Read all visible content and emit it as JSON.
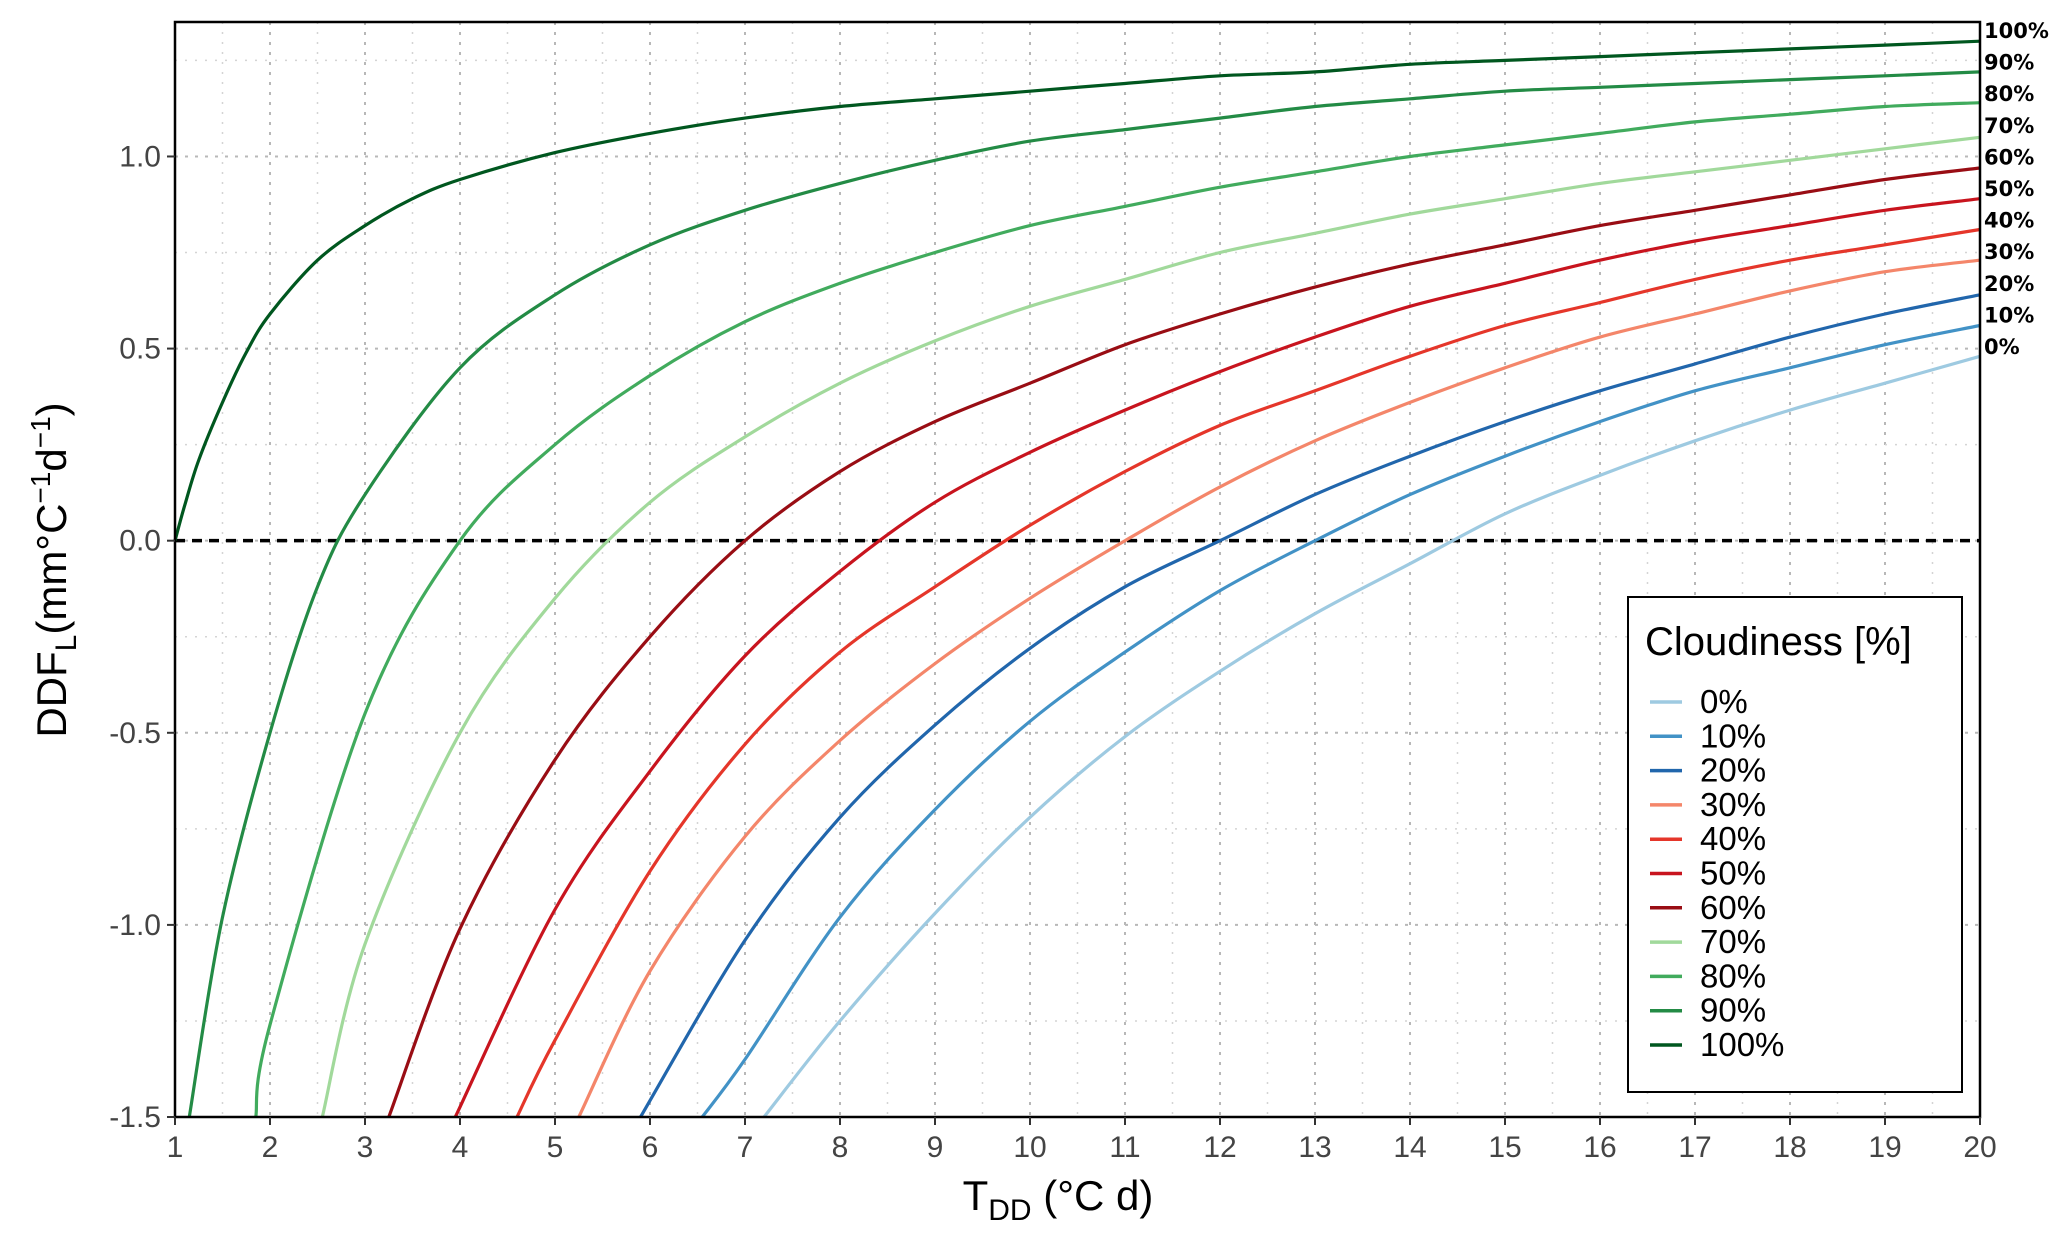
{
  "chart_data": {
    "type": "line",
    "title": "",
    "xlabel": "T",
    "xlabel_sub": "DD",
    "xlabel_rest": " (°C d)",
    "ylabel": "DDF",
    "ylabel_sub": "L",
    "ylabel_rest": "(mm°C",
    "ylabel_sup1": "−1",
    "ylabel_mid": "d",
    "ylabel_sup2": "−1",
    "ylabel_end": ")",
    "xlim": [
      1,
      20
    ],
    "ylim": [
      -1.5,
      1.35
    ],
    "x_ticks": [
      "1",
      "2",
      "3",
      "4",
      "5",
      "6",
      "7",
      "8",
      "9",
      "10",
      "11",
      "12",
      "13",
      "14",
      "15",
      "16",
      "17",
      "18",
      "19",
      "20"
    ],
    "y_ticks": [
      "-1.5",
      "-1.0",
      "-0.5",
      "0.0",
      "0.5",
      "1.0"
    ],
    "y_tick_values": [
      -1.5,
      -1.0,
      -0.5,
      0.0,
      0.5,
      1.0
    ],
    "grid": true,
    "reference_line": {
      "y": 0.0,
      "style": "dashed"
    },
    "legend": {
      "title": "Cloudiness [%]",
      "placement": "bottom-right"
    },
    "series": [
      {
        "name": "0%",
        "color": "#9ecae1",
        "x": [
          7.2,
          8,
          9,
          10,
          11,
          12,
          13,
          14,
          15,
          16,
          17,
          18,
          19,
          20
        ],
        "y": [
          -1.5,
          -1.25,
          -0.97,
          -0.72,
          -0.51,
          -0.34,
          -0.19,
          -0.06,
          0.07,
          0.17,
          0.26,
          0.34,
          0.41,
          0.48
        ]
      },
      {
        "name": "10%",
        "color": "#4292c6",
        "x": [
          6.55,
          7,
          8,
          9,
          10,
          11,
          12,
          13,
          14,
          15,
          16,
          17,
          18,
          19,
          20
        ],
        "y": [
          -1.5,
          -1.35,
          -0.98,
          -0.7,
          -0.47,
          -0.29,
          -0.13,
          0.0,
          0.12,
          0.22,
          0.31,
          0.39,
          0.45,
          0.51,
          0.56
        ]
      },
      {
        "name": "20%",
        "color": "#2166ac",
        "x": [
          5.9,
          7,
          8,
          9,
          10,
          11,
          12,
          13,
          14,
          15,
          16,
          17,
          18,
          19,
          20
        ],
        "y": [
          -1.5,
          -1.04,
          -0.72,
          -0.48,
          -0.28,
          -0.12,
          0.0,
          0.12,
          0.22,
          0.31,
          0.39,
          0.46,
          0.53,
          0.59,
          0.64
        ]
      },
      {
        "name": "30%",
        "color": "#f4866a",
        "x": [
          5.25,
          6,
          7,
          8,
          9,
          10,
          11,
          12,
          13,
          14,
          15,
          16,
          17,
          18,
          19,
          20
        ],
        "y": [
          -1.5,
          -1.12,
          -0.77,
          -0.52,
          -0.32,
          -0.15,
          0.0,
          0.14,
          0.26,
          0.36,
          0.45,
          0.53,
          0.59,
          0.65,
          0.7,
          0.73
        ]
      },
      {
        "name": "40%",
        "color": "#e5362a",
        "x": [
          4.6,
          5,
          6,
          7,
          8,
          9,
          10,
          11,
          12,
          13,
          14,
          15,
          16,
          17,
          18,
          19,
          20
        ],
        "y": [
          -1.5,
          -1.3,
          -0.86,
          -0.53,
          -0.29,
          -0.12,
          0.04,
          0.18,
          0.3,
          0.39,
          0.48,
          0.56,
          0.62,
          0.68,
          0.73,
          0.77,
          0.81
        ]
      },
      {
        "name": "50%",
        "color": "#c8141e",
        "x": [
          3.95,
          5,
          6,
          7,
          8,
          9,
          10,
          11,
          12,
          13,
          14,
          15,
          16,
          17,
          18,
          19,
          20
        ],
        "y": [
          -1.5,
          -0.96,
          -0.6,
          -0.3,
          -0.08,
          0.1,
          0.23,
          0.34,
          0.44,
          0.53,
          0.61,
          0.67,
          0.73,
          0.78,
          0.82,
          0.86,
          0.89
        ]
      },
      {
        "name": "60%",
        "color": "#990d14",
        "x": [
          3.25,
          4,
          5,
          6,
          7,
          8,
          9,
          10,
          11,
          12,
          13,
          14,
          15,
          16,
          17,
          18,
          19,
          20
        ],
        "y": [
          -1.5,
          -1.01,
          -0.57,
          -0.25,
          0.0,
          0.18,
          0.31,
          0.41,
          0.51,
          0.59,
          0.66,
          0.72,
          0.77,
          0.82,
          0.86,
          0.9,
          0.94,
          0.97
        ]
      },
      {
        "name": "70%",
        "color": "#a1d99b",
        "x": [
          2.55,
          3,
          4,
          5,
          6,
          7,
          8,
          9,
          10,
          11,
          12,
          13,
          14,
          15,
          16,
          17,
          18,
          19,
          20
        ],
        "y": [
          -1.5,
          -1.05,
          -0.5,
          -0.15,
          0.1,
          0.27,
          0.41,
          0.52,
          0.61,
          0.68,
          0.75,
          0.8,
          0.85,
          0.89,
          0.93,
          0.96,
          0.99,
          1.02,
          1.05
        ]
      },
      {
        "name": "80%",
        "color": "#41ab5d",
        "x": [
          1.85,
          2,
          3,
          4,
          5,
          6,
          7,
          8,
          9,
          10,
          11,
          12,
          13,
          14,
          15,
          16,
          17,
          18,
          19,
          20
        ],
        "y": [
          -1.5,
          -1.26,
          -0.45,
          0.0,
          0.25,
          0.43,
          0.57,
          0.67,
          0.75,
          0.82,
          0.87,
          0.92,
          0.96,
          1.0,
          1.03,
          1.06,
          1.09,
          1.11,
          1.13,
          1.14
        ]
      },
      {
        "name": "90%",
        "color": "#238b45",
        "x": [
          1.15,
          1.5,
          2,
          2.5,
          3,
          4,
          5,
          6,
          7,
          8,
          9,
          10,
          11,
          12,
          13,
          14,
          15,
          16,
          17,
          18,
          19,
          20
        ],
        "y": [
          -1.5,
          -0.98,
          -0.5,
          -0.12,
          0.12,
          0.45,
          0.64,
          0.77,
          0.86,
          0.93,
          0.99,
          1.04,
          1.07,
          1.1,
          1.13,
          1.15,
          1.17,
          1.18,
          1.19,
          1.2,
          1.21,
          1.22
        ]
      },
      {
        "name": "100%",
        "color": "#00571f",
        "x": [
          1.0,
          1.1,
          1.25,
          1.5,
          1.75,
          2,
          2.5,
          3,
          3.5,
          4,
          5,
          6,
          7,
          8,
          9,
          10,
          11,
          12,
          13,
          14,
          15,
          16,
          17,
          18,
          19,
          20
        ],
        "y": [
          0.0,
          0.09,
          0.21,
          0.36,
          0.49,
          0.59,
          0.73,
          0.82,
          0.89,
          0.94,
          1.01,
          1.06,
          1.1,
          1.13,
          1.15,
          1.17,
          1.19,
          1.21,
          1.22,
          1.24,
          1.25,
          1.26,
          1.27,
          1.28,
          1.29,
          1.3
        ]
      }
    ],
    "end_labels": [
      "100%",
      "90%",
      "80%",
      "70%",
      "60%",
      "50%",
      "40%",
      "30%",
      "20%",
      "10%",
      "0%"
    ]
  }
}
